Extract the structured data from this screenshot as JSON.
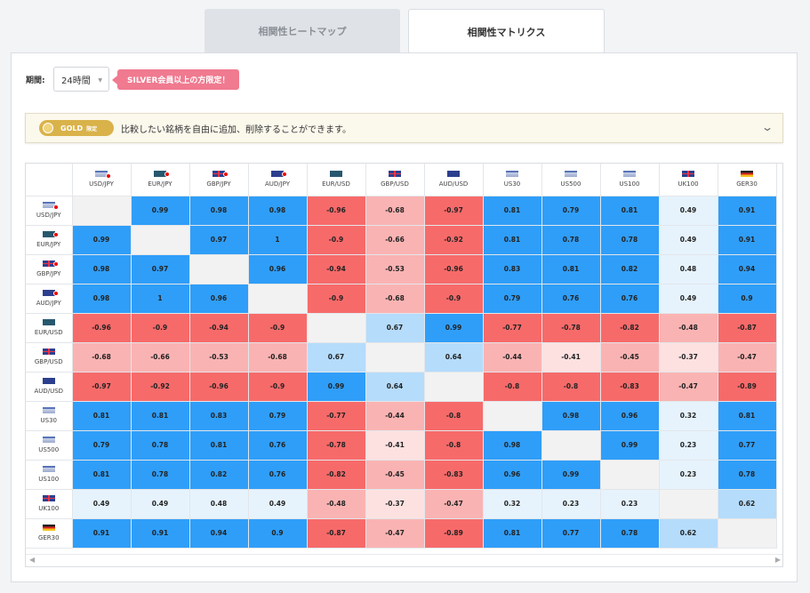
{
  "tabs": {
    "heatmap": "相関性ヒートマップ",
    "matrix": "相関性マトリクス"
  },
  "period": {
    "label": "期間:",
    "value": "24時間"
  },
  "silver_notice": "SILVER会員以上の方限定！",
  "gold_banner": {
    "badge": "GOLD",
    "badge_sub": "限定",
    "text": "比較したい銘柄を自由に追加、削除することができます。"
  },
  "colors": {
    "strong_pos": "#2f9ef8",
    "mid_pos": "#b5dcfb",
    "weak_pos": "#e6f3fd",
    "strong_neg": "#f76a6a",
    "mid_neg": "#fab3b3",
    "weak_neg": "#fde1e1"
  },
  "columns": [
    {
      "label": "USD/JPY",
      "flag": "us",
      "jp": true
    },
    {
      "label": "EUR/JPY",
      "flag": "eu",
      "jp": true
    },
    {
      "label": "GBP/JPY",
      "flag": "uk",
      "jp": true
    },
    {
      "label": "AUD/JPY",
      "flag": "au",
      "jp": true
    },
    {
      "label": "EUR/USD",
      "flag": "eu-us",
      "jp": false
    },
    {
      "label": "GBP/USD",
      "flag": "uk-us",
      "jp": false
    },
    {
      "label": "AUD/USD",
      "flag": "au-us",
      "jp": false
    },
    {
      "label": "US30",
      "flag": "us",
      "jp": false
    },
    {
      "label": "US500",
      "flag": "us",
      "jp": false
    },
    {
      "label": "US100",
      "flag": "us",
      "jp": false
    },
    {
      "label": "UK100",
      "flag": "uk",
      "jp": false
    },
    {
      "label": "GER30",
      "flag": "de",
      "jp": false
    }
  ],
  "matrix": [
    [
      null,
      "0.99",
      "0.98",
      "0.98",
      "-0.96",
      "-0.68",
      "-0.97",
      "0.81",
      "0.79",
      "0.81",
      "0.49",
      "0.91"
    ],
    [
      "0.99",
      null,
      "0.97",
      "1",
      "-0.9",
      "-0.66",
      "-0.92",
      "0.81",
      "0.78",
      "0.78",
      "0.49",
      "0.91"
    ],
    [
      "0.98",
      "0.97",
      null,
      "0.96",
      "-0.94",
      "-0.53",
      "-0.96",
      "0.83",
      "0.81",
      "0.82",
      "0.48",
      "0.94"
    ],
    [
      "0.98",
      "1",
      "0.96",
      null,
      "-0.9",
      "-0.68",
      "-0.9",
      "0.79",
      "0.76",
      "0.76",
      "0.49",
      "0.9"
    ],
    [
      "-0.96",
      "-0.9",
      "-0.94",
      "-0.9",
      null,
      "0.67",
      "0.99",
      "-0.77",
      "-0.78",
      "-0.82",
      "-0.48",
      "-0.87"
    ],
    [
      "-0.68",
      "-0.66",
      "-0.53",
      "-0.68",
      "0.67",
      null,
      "0.64",
      "-0.44",
      "-0.41",
      "-0.45",
      "-0.37",
      "-0.47"
    ],
    [
      "-0.97",
      "-0.92",
      "-0.96",
      "-0.9",
      "0.99",
      "0.64",
      null,
      "-0.8",
      "-0.8",
      "-0.83",
      "-0.47",
      "-0.89"
    ],
    [
      "0.81",
      "0.81",
      "0.83",
      "0.79",
      "-0.77",
      "-0.44",
      "-0.8",
      null,
      "0.98",
      "0.96",
      "0.32",
      "0.81"
    ],
    [
      "0.79",
      "0.78",
      "0.81",
      "0.76",
      "-0.78",
      "-0.41",
      "-0.8",
      "0.98",
      null,
      "0.99",
      "0.23",
      "0.77"
    ],
    [
      "0.81",
      "0.78",
      "0.82",
      "0.76",
      "-0.82",
      "-0.45",
      "-0.83",
      "0.96",
      "0.99",
      null,
      "0.23",
      "0.78"
    ],
    [
      "0.49",
      "0.49",
      "0.48",
      "0.49",
      "-0.48",
      "-0.37",
      "-0.47",
      "0.32",
      "0.23",
      "0.23",
      null,
      "0.62"
    ],
    [
      "0.91",
      "0.91",
      "0.94",
      "0.9",
      "-0.87",
      "-0.47",
      "-0.89",
      "0.81",
      "0.77",
      "0.78",
      "0.62",
      null
    ]
  ]
}
